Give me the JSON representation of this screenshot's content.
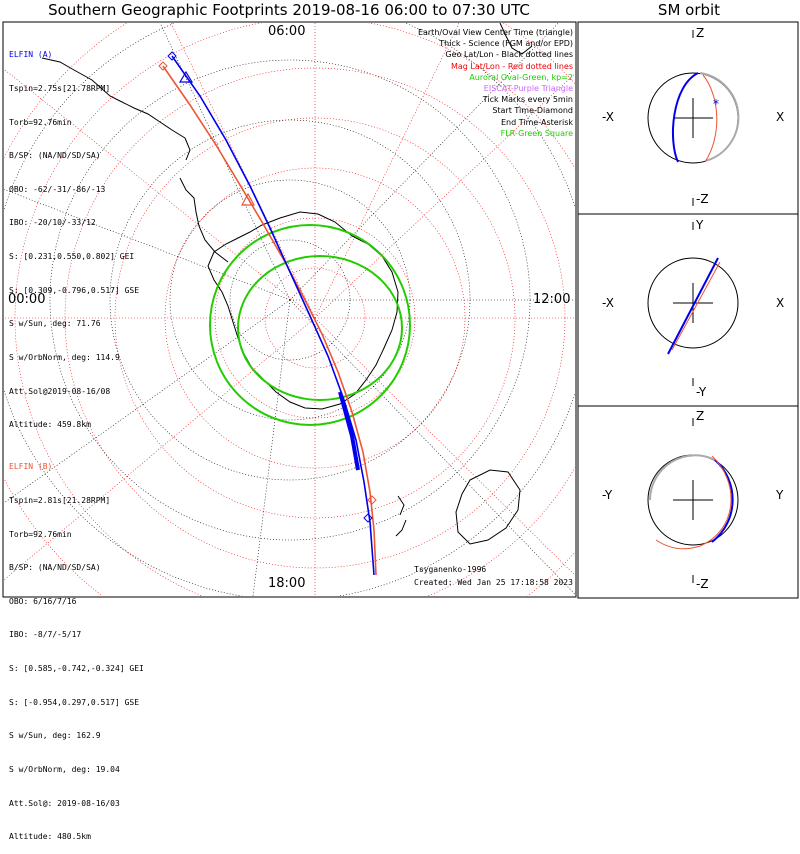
{
  "title": "Southern Geographic Footprints 2019-08-16 06:00 to 07:30 UTC",
  "sm_title": "SM orbit",
  "clock_labels": {
    "top": "06:00",
    "left": "00:00",
    "right": "12:00",
    "bottom": "18:00"
  },
  "colors": {
    "elfin_a": "#0000ee",
    "elfin_b": "#ee5533",
    "oval": "#22cc00",
    "geo": "#000000",
    "mag": "#ee0000",
    "eiscat": "#cc66ff"
  },
  "elfin_a": {
    "name": "ELFIN (A)",
    "lines": [
      "Tspin=2.75s[21.78RPM]",
      "Torb=92.76min",
      "B/SP: (NA/ND/SD/SA)",
      "OBO: -62/-31/-86/-13",
      "IBO: -20/10/-33/12",
      "S: [0.231,0.550,0.802] GEI",
      "S: [0.309,-0.796,0.517] GSE",
      "S w/Sun, deg: 71.76",
      "S w/OrbNorm, deg: 114.9",
      "Att.Sol@2019-08-16/08",
      "Altitude: 459.8km"
    ]
  },
  "elfin_b": {
    "name": "ELFIN (B)",
    "lines": [
      "Tspin=2.81s[21.28RPM]",
      "Torb=92.76min",
      "B/SP: (NA/ND/SD/SA)",
      "OBO: 6/16/7/16",
      "IBO: -8/7/-5/17",
      "S: [0.585,-0.742,-0.324] GEI",
      "S: [-0.954,0.297,0.517] GSE",
      "S w/Sun, deg: 162.9",
      "S w/OrbNorm, deg: 19.04",
      "Att.Sol@: 2019-08-16/03",
      "Altitude: 480.5km"
    ]
  },
  "legend": [
    {
      "text": "Earth/Oval View Center Time (triangle)",
      "color": "#000000"
    },
    {
      "text": "Thick - Science (FGM and/or EPD)",
      "color": "#000000"
    },
    {
      "text": "Geo Lat/Lon - Black dotted lines",
      "color": "#000000"
    },
    {
      "text": "Mag Lat/Lon - Red dotted lines",
      "color": "#ee0000"
    },
    {
      "text": "Auroral Oval-Green, kp=2",
      "color": "#22cc00"
    },
    {
      "text": "EISCAT-Purple Triangle",
      "color": "#cc66ff"
    },
    {
      "text": "Tick Marks every 5min",
      "color": "#000000"
    },
    {
      "text": "Start Time-Diamond",
      "color": "#000000"
    },
    {
      "text": "End Time-Asterisk",
      "color": "#000000"
    },
    {
      "text": "FLR-Green Square",
      "color": "#22cc00"
    }
  ],
  "footer": {
    "author": "Tsyganenko-1996",
    "created": "Created: Wed Jan 25 17:18:58 2023"
  },
  "sm_panels": [
    {
      "top": "Z",
      "bottom": "-Z",
      "left": "-X",
      "right": "X"
    },
    {
      "top": "Y",
      "bottom": "-Y",
      "left": "-X",
      "right": "X"
    },
    {
      "top": "Z",
      "bottom": "-Z",
      "left": "-Y",
      "right": "Y"
    }
  ]
}
